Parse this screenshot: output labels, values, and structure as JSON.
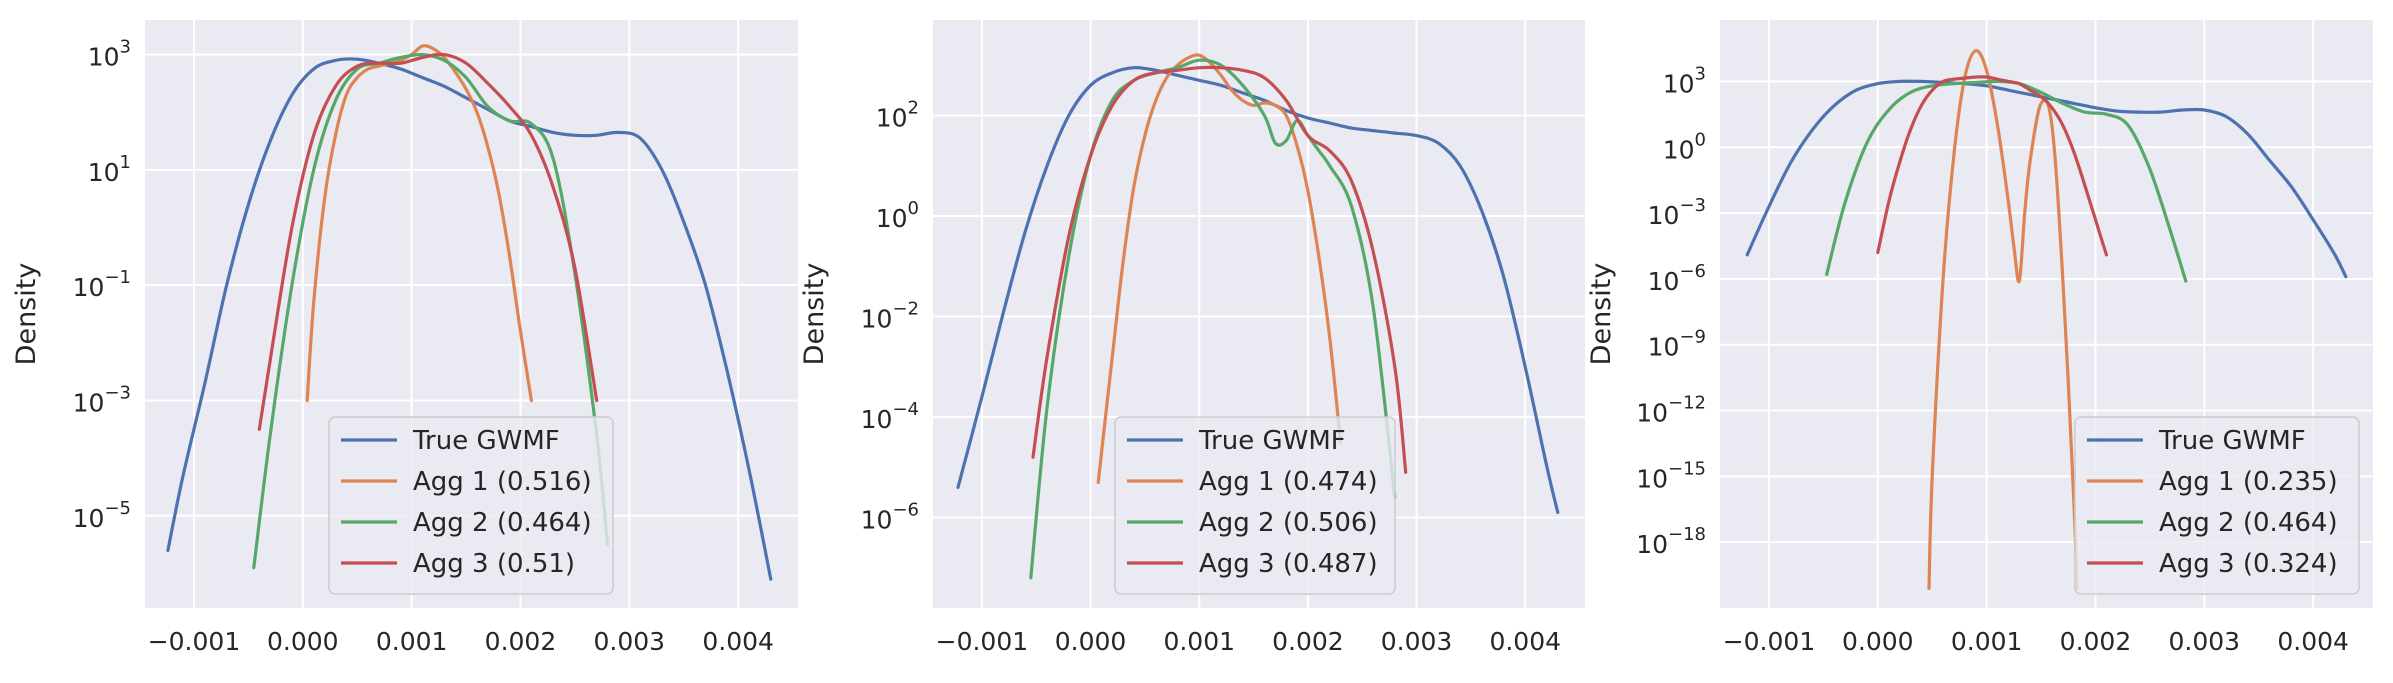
{
  "colors": {
    "background": "#eaeaf2",
    "grid": "#ffffff",
    "text": "#262626",
    "legend_face": "#eaeaf2",
    "legend_edge": "#cccccc"
  },
  "chart_data": [
    {
      "type": "line",
      "title": "",
      "xlabel": "",
      "ylabel": "Density",
      "yscale": "log",
      "xlim": [
        -0.00145,
        0.00455
      ],
      "ylim_log10": [
        -6.6,
        3.6
      ],
      "x_ticks": [
        -0.001,
        0.0,
        0.001,
        0.002,
        0.003,
        0.004
      ],
      "x_tick_labels": [
        "−0.001",
        "0.000",
        "0.001",
        "0.002",
        "0.003",
        "0.004"
      ],
      "y_ticks_log10": [
        -5,
        -3,
        -1,
        1,
        3
      ],
      "y_tick_labels": [
        {
          "base": "10",
          "exp": "−5"
        },
        {
          "base": "10",
          "exp": "−3"
        },
        {
          "base": "10",
          "exp": "−1"
        },
        {
          "base": "10",
          "exp": "1"
        },
        {
          "base": "10",
          "exp": "3"
        }
      ],
      "grid": true,
      "legend_position": "lower center",
      "series": [
        {
          "name": "True GWMF",
          "color": "#4c72b0",
          "x": [
            -0.00124,
            -0.0011,
            -0.0009,
            -0.0007,
            -0.0005,
            -0.0003,
            -0.0001,
            0.0001,
            0.0003,
            0.0005,
            0.0007,
            0.0009,
            0.0011,
            0.0013,
            0.0015,
            0.0017,
            0.0019,
            0.0021,
            0.0023,
            0.0025,
            0.0027,
            0.0029,
            0.0031,
            0.0033,
            0.0035,
            0.0037,
            0.0039,
            0.0041,
            0.0043
          ],
          "log10_y": [
            -5.6,
            -4.3,
            -2.7,
            -1.0,
            0.4,
            1.5,
            2.3,
            2.75,
            2.9,
            2.92,
            2.85,
            2.75,
            2.6,
            2.45,
            2.25,
            2.05,
            1.85,
            1.75,
            1.65,
            1.6,
            1.6,
            1.65,
            1.55,
            1.0,
            0.1,
            -1.0,
            -2.5,
            -4.2,
            -6.1
          ]
        },
        {
          "name": "Agg 1 (0.516)",
          "color": "#dd8452",
          "x": [
            4e-05,
            0.0001,
            0.0002,
            0.0003,
            0.0004,
            0.0005,
            0.0006,
            0.0007,
            0.0008,
            0.0009,
            0.001,
            0.0011,
            0.0012,
            0.0013,
            0.0014,
            0.0015,
            0.0016,
            0.0017,
            0.0018,
            0.0019,
            0.002,
            0.0021
          ],
          "log10_y": [
            -3.0,
            -1.3,
            0.5,
            1.6,
            2.3,
            2.6,
            2.75,
            2.8,
            2.85,
            2.9,
            3.0,
            3.15,
            3.1,
            2.95,
            2.7,
            2.4,
            2.0,
            1.4,
            0.6,
            -0.5,
            -1.8,
            -3.0
          ]
        },
        {
          "name": "Agg 2 (0.464)",
          "color": "#55a868",
          "x": [
            -0.00045,
            -0.0003,
            -0.0001,
            0.0001,
            0.0003,
            0.0005,
            0.0007,
            0.0009,
            0.0011,
            0.0013,
            0.0015,
            0.0017,
            0.0019,
            0.0021,
            0.0023,
            0.0025,
            0.0027,
            0.0028
          ],
          "log10_y": [
            -5.9,
            -3.6,
            -1.0,
            1.0,
            2.2,
            2.75,
            2.85,
            2.95,
            3.0,
            2.9,
            2.6,
            2.1,
            1.85,
            1.8,
            1.2,
            -0.8,
            -3.6,
            -5.5
          ]
        },
        {
          "name": "Agg 3 (0.51)",
          "color": "#c44e52",
          "x": [
            -0.0004,
            -0.0003,
            -0.0001,
            0.0001,
            0.0003,
            0.0005,
            0.0007,
            0.0009,
            0.0011,
            0.0013,
            0.0015,
            0.0017,
            0.0019,
            0.0021,
            0.0023,
            0.0025,
            0.0027
          ],
          "log10_y": [
            -3.5,
            -2.3,
            0.0,
            1.6,
            2.45,
            2.8,
            2.85,
            2.85,
            2.95,
            3.0,
            2.85,
            2.5,
            2.1,
            1.6,
            0.7,
            -0.7,
            -3.0
          ]
        }
      ]
    },
    {
      "type": "line",
      "title": "",
      "xlabel": "",
      "ylabel": "Density",
      "yscale": "log",
      "xlim": [
        -0.00145,
        0.00455
      ],
      "ylim_log10": [
        -7.8,
        3.9
      ],
      "x_ticks": [
        -0.001,
        0.0,
        0.001,
        0.002,
        0.003,
        0.004
      ],
      "x_tick_labels": [
        "−0.001",
        "0.000",
        "0.001",
        "0.002",
        "0.003",
        "0.004"
      ],
      "y_ticks_log10": [
        -6,
        -4,
        -2,
        0,
        2
      ],
      "y_tick_labels": [
        {
          "base": "10",
          "exp": "−6"
        },
        {
          "base": "10",
          "exp": "−4"
        },
        {
          "base": "10",
          "exp": "−2"
        },
        {
          "base": "10",
          "exp": "0"
        },
        {
          "base": "10",
          "exp": "2"
        }
      ],
      "grid": true,
      "legend_position": "lower center",
      "series": [
        {
          "name": "True GWMF",
          "color": "#4c72b0",
          "x": [
            -0.00122,
            -0.001,
            -0.0008,
            -0.0006,
            -0.0004,
            -0.0002,
            0.0,
            0.0002,
            0.0004,
            0.0006,
            0.0008,
            0.001,
            0.0012,
            0.0014,
            0.0016,
            0.0018,
            0.002,
            0.0022,
            0.0024,
            0.0026,
            0.0028,
            0.003,
            0.0032,
            0.0034,
            0.0036,
            0.0038,
            0.004,
            0.0042,
            0.0043
          ],
          "log10_y": [
            -5.4,
            -3.6,
            -1.9,
            -0.3,
            1.0,
            2.0,
            2.6,
            2.85,
            2.95,
            2.9,
            2.8,
            2.7,
            2.6,
            2.45,
            2.3,
            2.1,
            1.95,
            1.85,
            1.75,
            1.7,
            1.65,
            1.6,
            1.45,
            1.0,
            0.1,
            -1.2,
            -3.0,
            -5.0,
            -5.9
          ]
        },
        {
          "name": "Agg 1 (0.474)",
          "color": "#dd8452",
          "x": [
            7e-05,
            0.0002,
            0.0003,
            0.0004,
            0.0005,
            0.0006,
            0.0007,
            0.0008,
            0.0009,
            0.001,
            0.0011,
            0.0012,
            0.0013,
            0.0014,
            0.0015,
            0.0016,
            0.0017,
            0.0018,
            0.0019,
            0.002,
            0.0021,
            0.0022,
            0.0023
          ],
          "log10_y": [
            -5.3,
            -2.8,
            -0.9,
            0.6,
            1.6,
            2.3,
            2.75,
            3.0,
            3.15,
            3.2,
            3.05,
            2.8,
            2.5,
            2.3,
            2.2,
            2.25,
            2.2,
            2.0,
            1.4,
            0.5,
            -0.8,
            -2.4,
            -4.5
          ]
        },
        {
          "name": "Agg 2 (0.506)",
          "color": "#55a868",
          "x": [
            -0.00055,
            -0.0004,
            -0.0002,
            0.0,
            0.0002,
            0.0004,
            0.0006,
            0.0008,
            0.001,
            0.0012,
            0.0014,
            0.0016,
            0.0017,
            0.0018,
            0.0019,
            0.002,
            0.0021,
            0.0022,
            0.0024,
            0.0026,
            0.0028
          ],
          "log10_y": [
            -7.2,
            -3.8,
            -0.8,
            1.2,
            2.3,
            2.7,
            2.85,
            2.95,
            3.1,
            3.0,
            2.6,
            2.0,
            1.45,
            1.5,
            1.9,
            1.6,
            1.3,
            1.0,
            0.2,
            -1.8,
            -5.6
          ]
        },
        {
          "name": "Agg 3 (0.487)",
          "color": "#c44e52",
          "x": [
            -0.00053,
            -0.0004,
            -0.0002,
            0.0,
            0.0002,
            0.0004,
            0.0006,
            0.0008,
            0.001,
            0.0012,
            0.0014,
            0.0016,
            0.0018,
            0.002,
            0.0022,
            0.0024,
            0.0026,
            0.0028,
            0.0029
          ],
          "log10_y": [
            -4.8,
            -2.8,
            -0.4,
            1.2,
            2.2,
            2.7,
            2.85,
            2.9,
            2.95,
            2.95,
            2.9,
            2.75,
            2.3,
            1.6,
            1.3,
            0.7,
            -0.7,
            -3.0,
            -5.1
          ]
        }
      ]
    },
    {
      "type": "line",
      "title": "",
      "xlabel": "",
      "ylabel": "Density",
      "yscale": "log",
      "xlim": [
        -0.00145,
        0.00455
      ],
      "ylim_log10": [
        -21.0,
        5.8
      ],
      "x_ticks": [
        -0.001,
        0.0,
        0.001,
        0.002,
        0.003,
        0.004
      ],
      "x_tick_labels": [
        "−0.001",
        "0.000",
        "0.001",
        "0.002",
        "0.003",
        "0.004"
      ],
      "y_ticks_log10": [
        -18,
        -15,
        -12,
        -9,
        -6,
        -3,
        0,
        3
      ],
      "y_tick_labels": [
        {
          "base": "10",
          "exp": "−18"
        },
        {
          "base": "10",
          "exp": "−15"
        },
        {
          "base": "10",
          "exp": "−12"
        },
        {
          "base": "10",
          "exp": "−9"
        },
        {
          "base": "10",
          "exp": "−6"
        },
        {
          "base": "10",
          "exp": "−3"
        },
        {
          "base": "10",
          "exp": "0"
        },
        {
          "base": "10",
          "exp": "3"
        }
      ],
      "grid": true,
      "legend_position": "lower right",
      "series": [
        {
          "name": "True GWMF",
          "color": "#4c72b0",
          "x": [
            -0.0012,
            -0.001,
            -0.0008,
            -0.0006,
            -0.0004,
            -0.0002,
            0.0,
            0.0002,
            0.0004,
            0.0006,
            0.0008,
            0.001,
            0.0012,
            0.0014,
            0.0016,
            0.0018,
            0.002,
            0.0022,
            0.0024,
            0.0026,
            0.0028,
            0.003,
            0.0032,
            0.0034,
            0.0036,
            0.0038,
            0.004,
            0.0042,
            0.0043
          ],
          "log10_y": [
            -4.9,
            -2.7,
            -0.7,
            0.8,
            1.9,
            2.6,
            2.9,
            3.0,
            3.0,
            2.95,
            2.9,
            2.8,
            2.6,
            2.4,
            2.2,
            2.0,
            1.8,
            1.65,
            1.6,
            1.6,
            1.7,
            1.7,
            1.4,
            0.6,
            -0.6,
            -1.8,
            -3.3,
            -4.9,
            -5.9
          ]
        },
        {
          "name": "Agg 1 (0.235)",
          "color": "#dd8452",
          "x": [
            0.00047,
            0.0005,
            0.0006,
            0.0007,
            0.0008,
            0.0009,
            0.001,
            0.0011,
            0.0012,
            0.00125,
            0.0013,
            0.00135,
            0.0014,
            0.0015,
            0.0016,
            0.0017,
            0.0018,
            0.00183
          ],
          "log10_y": [
            -20.1,
            -15.0,
            -6.0,
            -0.3,
            3.2,
            4.4,
            3.5,
            1.0,
            -2.5,
            -4.5,
            -6.1,
            -3.0,
            -0.6,
            2.0,
            1.0,
            -6.0,
            -16.0,
            -20.1
          ]
        },
        {
          "name": "Agg 2 (0.464)",
          "color": "#55a868",
          "x": [
            -0.00047,
            -0.0003,
            -0.0001,
            0.0001,
            0.0003,
            0.0005,
            0.0007,
            0.0009,
            0.0011,
            0.0013,
            0.0015,
            0.0017,
            0.0019,
            0.0021,
            0.0023,
            0.0025,
            0.0027,
            0.00283
          ],
          "log10_y": [
            -5.8,
            -2.5,
            0.2,
            1.7,
            2.5,
            2.8,
            2.9,
            2.95,
            3.0,
            2.9,
            2.5,
            2.0,
            1.6,
            1.5,
            1.0,
            -1.0,
            -4.0,
            -6.1
          ]
        },
        {
          "name": "Agg 3 (0.324)",
          "color": "#c44e52",
          "x": [
            0.0,
            0.0001,
            0.0002,
            0.0003,
            0.0004,
            0.0005,
            0.0006,
            0.0007,
            0.0008,
            0.0009,
            0.001,
            0.0011,
            0.0012,
            0.0013,
            0.0014,
            0.0015,
            0.0016,
            0.0017,
            0.0018,
            0.0019,
            0.002,
            0.0021
          ],
          "log10_y": [
            -4.8,
            -2.5,
            -0.7,
            0.8,
            1.9,
            2.6,
            3.0,
            3.1,
            3.15,
            3.2,
            3.2,
            3.1,
            3.0,
            2.9,
            2.6,
            2.3,
            1.8,
            1.0,
            -0.2,
            -1.7,
            -3.3,
            -4.9
          ]
        }
      ]
    }
  ]
}
